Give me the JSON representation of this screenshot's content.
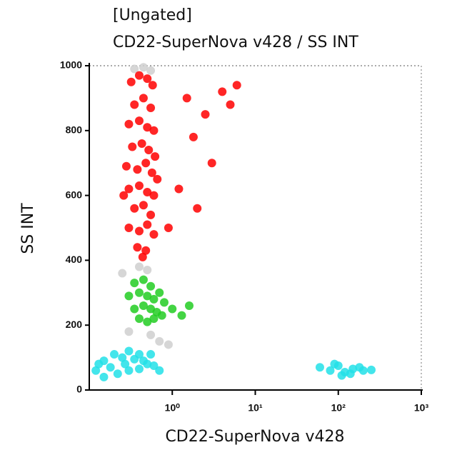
{
  "chart_data": {
    "type": "scatter",
    "title": "[Ungated]",
    "subtitle": "CD22-SuperNova v428 / SS INT",
    "x_label": "CD22-SuperNova v428",
    "y_label": "SS INT",
    "x_scale": "log",
    "xlim": [
      0.1,
      1000
    ],
    "xticks": [
      {
        "value": 1,
        "label": "10⁰"
      },
      {
        "value": 10,
        "label": "10¹"
      },
      {
        "value": 100,
        "label": "10²"
      },
      {
        "value": 1000,
        "label": "10³"
      }
    ],
    "ylim": [
      0,
      1000
    ],
    "yticks": [
      0,
      200,
      400,
      600,
      800,
      1000
    ],
    "series": [
      {
        "color": "#cfcfcf",
        "x": [
          0.45,
          0.35,
          0.55,
          0.4,
          0.5,
          0.3,
          0.55,
          0.7,
          0.9,
          0.25
        ],
        "values": [
          995,
          990,
          985,
          380,
          370,
          180,
          170,
          150,
          140,
          360
        ]
      },
      {
        "color": "#ff0000",
        "x": [
          0.32,
          0.4,
          0.5,
          0.58,
          0.35,
          0.45,
          0.55,
          0.3,
          0.4,
          0.5,
          0.6,
          0.33,
          0.43,
          0.52,
          0.62,
          0.28,
          0.38,
          0.48,
          0.57,
          0.3,
          0.4,
          0.5,
          0.6,
          0.35,
          0.45,
          0.55,
          0.3,
          0.4,
          0.5,
          0.6,
          0.38,
          0.48,
          0.44,
          0.26,
          0.66,
          1.5,
          2.5,
          4,
          5,
          3,
          1.2,
          2,
          6,
          1.8,
          0.9
        ],
        "values": [
          950,
          970,
          960,
          940,
          880,
          900,
          870,
          820,
          830,
          810,
          800,
          750,
          760,
          740,
          720,
          690,
          680,
          700,
          670,
          620,
          630,
          610,
          600,
          560,
          570,
          540,
          500,
          490,
          510,
          480,
          440,
          430,
          410,
          600,
          650,
          900,
          850,
          920,
          880,
          700,
          620,
          560,
          940,
          780,
          500
        ]
      },
      {
        "color": "#22cc22",
        "x": [
          0.35,
          0.45,
          0.55,
          0.3,
          0.4,
          0.5,
          0.6,
          0.7,
          0.35,
          0.45,
          0.55,
          0.65,
          0.8,
          0.4,
          0.5,
          0.6,
          1.0,
          1.3,
          0.75,
          1.6
        ],
        "values": [
          330,
          340,
          320,
          290,
          300,
          290,
          280,
          300,
          250,
          260,
          250,
          240,
          270,
          220,
          210,
          220,
          250,
          230,
          230,
          260
        ]
      },
      {
        "color": "#22e0e8",
        "x": [
          0.12,
          0.15,
          0.18,
          0.2,
          0.25,
          0.3,
          0.35,
          0.4,
          0.45,
          0.5,
          0.6,
          0.22,
          0.3,
          0.4,
          0.15,
          0.13,
          0.55,
          0.7,
          0.27,
          60,
          80,
          100,
          120,
          150,
          180,
          200,
          110,
          140,
          90,
          250
        ],
        "values": [
          60,
          90,
          70,
          110,
          100,
          120,
          95,
          110,
          90,
          80,
          75,
          50,
          60,
          65,
          40,
          80,
          110,
          60,
          80,
          70,
          60,
          75,
          55,
          65,
          70,
          60,
          45,
          50,
          80,
          62
        ]
      }
    ]
  }
}
